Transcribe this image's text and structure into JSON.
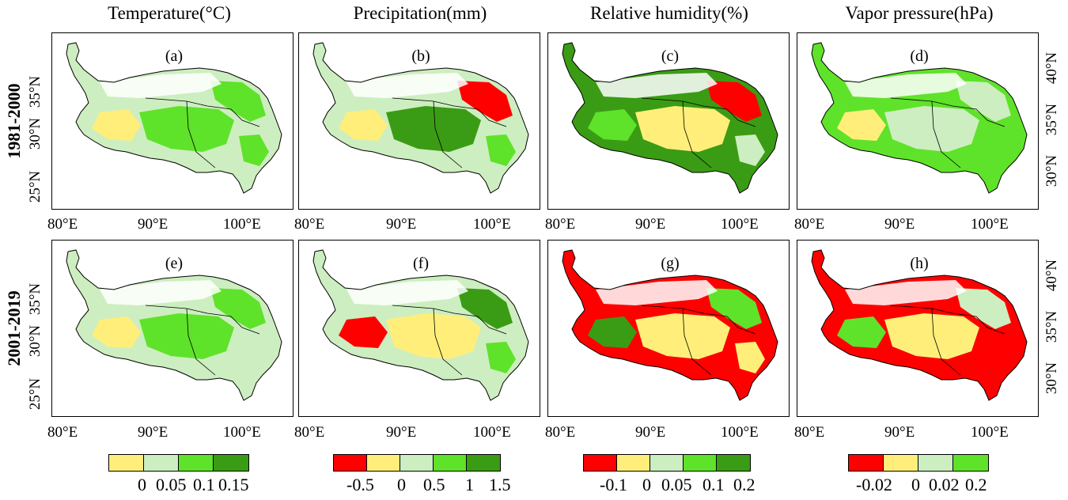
{
  "columns": [
    {
      "title": "Temperature(°C)"
    },
    {
      "title": "Precipitation(mm)"
    },
    {
      "title": "Relative humidity(%)"
    },
    {
      "title": "Vapor  pressure(hPa)"
    }
  ],
  "rows": [
    {
      "title": "1981-2000"
    },
    {
      "title": "2001-2019"
    }
  ],
  "panels": [
    {
      "label": "(a)",
      "base": "#cdeec0",
      "blobs": [
        "#5fe22a",
        "#5fe22a",
        "#ffef7a",
        "#5fe22a"
      ]
    },
    {
      "label": "(b)",
      "base": "#cdeec0",
      "blobs": [
        "#3a9c14",
        "#ff0000",
        "#ffef7a",
        "#5fe22a"
      ]
    },
    {
      "label": "(c)",
      "base": "#3a9c14",
      "blobs": [
        "#ffef7a",
        "#ff0000",
        "#5fe22a",
        "#cdeec0"
      ]
    },
    {
      "label": "(d)",
      "base": "#5fe22a",
      "blobs": [
        "#cdeec0",
        "#cdeec0",
        "#ffef7a",
        "#5fe22a"
      ]
    },
    {
      "label": "(e)",
      "base": "#cdeec0",
      "blobs": [
        "#5fe22a",
        "#5fe22a",
        "#ffef7a",
        "#cdeec0"
      ]
    },
    {
      "label": "(f)",
      "base": "#cdeec0",
      "blobs": [
        "#ffef7a",
        "#3a9c14",
        "#ff0000",
        "#5fe22a"
      ]
    },
    {
      "label": "(g)",
      "base": "#ff0000",
      "blobs": [
        "#ffef7a",
        "#5fe22a",
        "#3a9c14",
        "#ffef7a"
      ]
    },
    {
      "label": "(h)",
      "base": "#ff0000",
      "blobs": [
        "#ffef7a",
        "#cdeec0",
        "#5fe22a",
        "#ff0000"
      ]
    }
  ],
  "axes": {
    "x_ticks": [
      "80°E",
      "90°E",
      "100°E"
    ],
    "x_ticks_alt": [
      "80°E",
      "90°E",
      "100°E"
    ],
    "y_ticks_left": [
      "35°N",
      "30°N",
      "25°N"
    ],
    "y_ticks_right": [
      "40°N",
      "35°N",
      "30°N"
    ]
  },
  "legends": [
    {
      "colors": [
        "#ffef7a",
        "#cdeec0",
        "#5fe22a",
        "#3a9c14"
      ],
      "ticks": [
        "0",
        "0.05",
        "0.1",
        "0.15"
      ]
    },
    {
      "colors": [
        "#ff0000",
        "#ffef7a",
        "#cdeec0",
        "#5fe22a",
        "#3a9c14"
      ],
      "ticks": [
        "-0.5",
        "0",
        "0.5",
        "1",
        "1.5"
      ]
    },
    {
      "colors": [
        "#ff0000",
        "#ffef7a",
        "#cdeec0",
        "#5fe22a",
        "#3a9c14"
      ],
      "ticks": [
        "-0.1",
        "0",
        "0.05",
        "0.1",
        "0.2"
      ]
    },
    {
      "colors": [
        "#ff0000",
        "#ffef7a",
        "#cdeec0",
        "#5fe22a"
      ],
      "ticks": [
        "-0.02",
        "0",
        "0.02",
        "0.2"
      ]
    }
  ]
}
